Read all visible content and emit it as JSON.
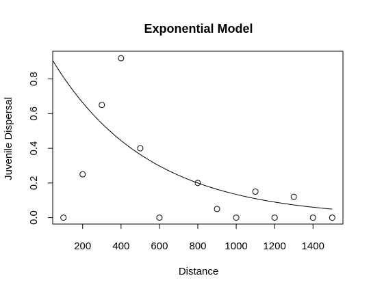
{
  "chart_data": {
    "type": "scatter",
    "title": "Exponential Model",
    "xlabel": "Distance",
    "ylabel": "Juvenile Dispersal",
    "xlim": [
      44,
      1556
    ],
    "ylim": [
      -0.037,
      0.96
    ],
    "x_ticks": [
      200,
      400,
      600,
      800,
      1000,
      1200,
      1400
    ],
    "x_tick_labels": [
      "200",
      "400",
      "600",
      "800",
      "1000",
      "1200",
      "1400"
    ],
    "y_ticks": [
      0.0,
      0.2,
      0.4,
      0.6,
      0.8
    ],
    "y_tick_labels": [
      "0.0",
      "0.2",
      "0.4",
      "0.6",
      "0.8"
    ],
    "grid": false,
    "points": {
      "x": [
        100,
        200,
        300,
        400,
        500,
        600,
        800,
        900,
        1000,
        1100,
        1200,
        1300,
        1400,
        1500
      ],
      "y": [
        0.0,
        0.25,
        0.65,
        0.92,
        0.4,
        0.0,
        0.2,
        0.05,
        0.0,
        0.15,
        0.0,
        0.12,
        0.0,
        0.0
      ]
    },
    "fitted_curve": {
      "model": "exponential",
      "a": 0.99,
      "b": 0.002
    }
  }
}
